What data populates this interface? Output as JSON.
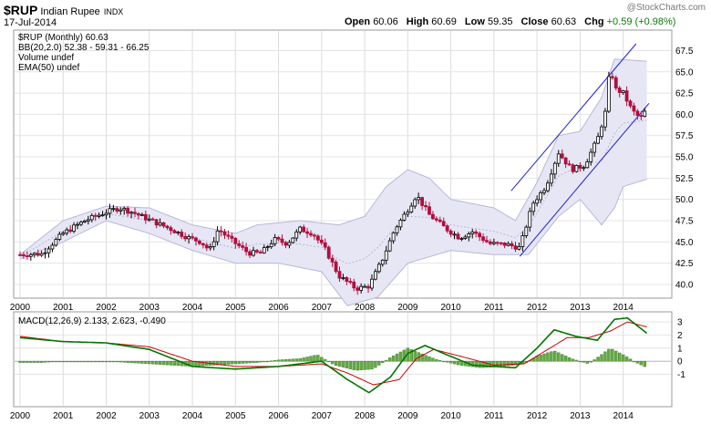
{
  "header": {
    "symbol": "$RUP",
    "name": "Indian Rupee",
    "exchange": "INDX",
    "date": "17-Jul-2014",
    "watermark": "@StockCharts.com",
    "open_label": "Open",
    "open": "60.06",
    "high_label": "High",
    "high": "60.69",
    "low_label": "Low",
    "low": "59.35",
    "close_label": "Close",
    "close": "60.63",
    "chg_label": "Chg",
    "chg": "+0.59 (+0.98%)"
  },
  "legend": {
    "price": "$RUP (Monthly) 60.63",
    "bb": "BB(20,2.0) 52.38 - 59.31 - 66.25",
    "volume": "Volume undef",
    "ema": "EMA(50) undef",
    "macd": "MACD(12,26,9) 2.133, 2.623, -0.490"
  },
  "colors": {
    "up_candle": "#000000",
    "down_candle": "#b0103c",
    "bb_fill": "#e6e6f5",
    "trend_lines": "#2222cc",
    "macd_line": "#007700",
    "signal_line": "#cc0000",
    "histogram": "#66aa44"
  },
  "chart_data": [
    {
      "type": "candlestick",
      "x_axis": {
        "label": "",
        "ticks": [
          "2000",
          "2001",
          "2002",
          "2003",
          "2004",
          "2005",
          "2006",
          "2007",
          "2008",
          "2009",
          "2010",
          "2011",
          "2012",
          "2013",
          "2014"
        ],
        "range": [
          2000,
          2014.6
        ]
      },
      "y_axis": {
        "ticks": [
          40.0,
          42.5,
          45.0,
          47.5,
          50.0,
          52.5,
          55.0,
          57.5,
          60.0,
          62.5,
          65.0,
          67.5
        ],
        "range": [
          38.6,
          69.8
        ],
        "position": "right"
      },
      "series": [
        {
          "name": "$RUP",
          "points": [
            [
              2000.0,
              43.5
            ],
            [
              2000.5,
              43.6
            ],
            [
              2001.0,
              46.0
            ],
            [
              2001.5,
              47.5
            ],
            [
              2002.0,
              48.5
            ],
            [
              2002.3,
              49.0
            ],
            [
              2002.6,
              48.5
            ],
            [
              2003.0,
              47.6
            ],
            [
              2003.5,
              46.5
            ],
            [
              2003.9,
              45.5
            ],
            [
              2004.2,
              45.0
            ],
            [
              2004.4,
              44.0
            ],
            [
              2004.6,
              46.5
            ],
            [
              2004.9,
              45.2
            ],
            [
              2005.3,
              43.7
            ],
            [
              2005.6,
              43.7
            ],
            [
              2005.9,
              45.3
            ],
            [
              2006.2,
              44.8
            ],
            [
              2006.5,
              46.5
            ],
            [
              2006.8,
              46.0
            ],
            [
              2007.1,
              44.0
            ],
            [
              2007.4,
              41.0
            ],
            [
              2007.8,
              39.5
            ],
            [
              2008.1,
              39.8
            ],
            [
              2008.4,
              42.8
            ],
            [
              2008.7,
              46.5
            ],
            [
              2009.0,
              48.8
            ],
            [
              2009.2,
              50.5
            ],
            [
              2009.5,
              48.2
            ],
            [
              2009.9,
              46.5
            ],
            [
              2010.2,
              45.5
            ],
            [
              2010.5,
              46.2
            ],
            [
              2010.9,
              44.8
            ],
            [
              2011.3,
              44.7
            ],
            [
              2011.6,
              44.3
            ],
            [
              2011.9,
              49.5
            ],
            [
              2012.2,
              51.5
            ],
            [
              2012.5,
              55.5
            ],
            [
              2012.8,
              53.5
            ],
            [
              2013.1,
              54.0
            ],
            [
              2013.4,
              57.0
            ],
            [
              2013.6,
              60.5
            ],
            [
              2013.7,
              66.0
            ],
            [
              2013.8,
              63.0
            ],
            [
              2014.0,
              62.5
            ],
            [
              2014.2,
              60.5
            ],
            [
              2014.4,
              59.5
            ],
            [
              2014.55,
              60.63
            ]
          ]
        },
        {
          "name": "BB(20,2.0)",
          "upper": [
            [
              2000.0,
              43.5
            ],
            [
              2001.0,
              47.5
            ],
            [
              2002.0,
              49.2
            ],
            [
              2003.0,
              49.0
            ],
            [
              2004.0,
              47.0
            ],
            [
              2005.0,
              46.0
            ],
            [
              2005.5,
              47.0
            ],
            [
              2006.5,
              47.5
            ],
            [
              2007.4,
              47.0
            ],
            [
              2008.0,
              48.0
            ],
            [
              2008.5,
              51.5
            ],
            [
              2009.0,
              53.5
            ],
            [
              2009.5,
              52.5
            ],
            [
              2010.0,
              50.0
            ],
            [
              2011.0,
              49.0
            ],
            [
              2011.5,
              47.5
            ],
            [
              2012.0,
              52.0
            ],
            [
              2012.5,
              57.5
            ],
            [
              2013.0,
              58.0
            ],
            [
              2013.5,
              62.0
            ],
            [
              2013.8,
              66.5
            ],
            [
              2014.55,
              66.25
            ]
          ],
          "lower": [
            [
              2000.0,
              43.0
            ],
            [
              2001.0,
              45.0
            ],
            [
              2002.0,
              47.5
            ],
            [
              2003.0,
              46.0
            ],
            [
              2004.0,
              44.0
            ],
            [
              2005.0,
              42.5
            ],
            [
              2006.0,
              42.5
            ],
            [
              2007.0,
              41.5
            ],
            [
              2007.6,
              37.5
            ],
            [
              2008.3,
              38.5
            ],
            [
              2009.0,
              42.5
            ],
            [
              2010.0,
              44.0
            ],
            [
              2011.0,
              43.5
            ],
            [
              2011.8,
              43.5
            ],
            [
              2012.5,
              48.0
            ],
            [
              2013.0,
              50.0
            ],
            [
              2013.5,
              47.0
            ],
            [
              2013.8,
              49.0
            ],
            [
              2014.0,
              51.5
            ],
            [
              2014.55,
              52.38
            ]
          ]
        }
      ]
    },
    {
      "type": "line",
      "x_axis": {
        "ticks": [
          "2000",
          "2001",
          "2002",
          "2003",
          "2004",
          "2005",
          "2006",
          "2007",
          "2008",
          "2009",
          "2010",
          "2011",
          "2012",
          "2013",
          "2014"
        ],
        "range": [
          2000,
          2014.6
        ]
      },
      "y_axis": {
        "ticks": [
          -1,
          0,
          1,
          2,
          3
        ],
        "range": [
          -3.4,
          3.7
        ],
        "position": "right"
      },
      "series": [
        {
          "name": "MACD(12,26,9)",
          "points": [
            [
              2000.0,
              1.8
            ],
            [
              2001.0,
              1.5
            ],
            [
              2002.0,
              1.4
            ],
            [
              2003.0,
              0.9
            ],
            [
              2004.0,
              -0.4
            ],
            [
              2005.0,
              -0.6
            ],
            [
              2006.0,
              -0.4
            ],
            [
              2007.0,
              0.0
            ],
            [
              2007.6,
              -1.4
            ],
            [
              2008.1,
              -2.4
            ],
            [
              2008.6,
              -1.2
            ],
            [
              2009.0,
              0.6
            ],
            [
              2009.4,
              1.2
            ],
            [
              2009.9,
              0.5
            ],
            [
              2010.5,
              -0.3
            ],
            [
              2011.5,
              -0.5
            ],
            [
              2012.0,
              1.0
            ],
            [
              2012.4,
              2.4
            ],
            [
              2012.9,
              1.9
            ],
            [
              2013.4,
              1.6
            ],
            [
              2013.8,
              3.2
            ],
            [
              2014.1,
              3.3
            ],
            [
              2014.55,
              2.133
            ]
          ]
        },
        {
          "name": "signal",
          "points": [
            [
              2000.0,
              1.9
            ],
            [
              2001.0,
              1.5
            ],
            [
              2002.0,
              1.4
            ],
            [
              2003.0,
              1.1
            ],
            [
              2004.0,
              0.0
            ],
            [
              2005.0,
              -0.4
            ],
            [
              2006.0,
              -0.4
            ],
            [
              2007.0,
              -0.2
            ],
            [
              2007.6,
              -0.9
            ],
            [
              2008.2,
              -1.8
            ],
            [
              2008.8,
              -1.4
            ],
            [
              2009.2,
              0.2
            ],
            [
              2009.6,
              0.9
            ],
            [
              2010.2,
              0.4
            ],
            [
              2011.0,
              -0.3
            ],
            [
              2011.7,
              -0.2
            ],
            [
              2012.2,
              0.8
            ],
            [
              2012.7,
              1.8
            ],
            [
              2013.2,
              1.8
            ],
            [
              2013.7,
              2.3
            ],
            [
              2014.1,
              3.0
            ],
            [
              2014.55,
              2.623
            ]
          ]
        },
        {
          "name": "histogram",
          "points": [
            [
              2000.0,
              -0.1
            ],
            [
              2000.5,
              -0.1
            ],
            [
              2001.0,
              0.0
            ],
            [
              2001.5,
              0.0
            ],
            [
              2002.0,
              0.0
            ],
            [
              2002.5,
              -0.1
            ],
            [
              2003.0,
              -0.2
            ],
            [
              2003.5,
              -0.3
            ],
            [
              2004.0,
              -0.4
            ],
            [
              2004.5,
              -0.3
            ],
            [
              2005.0,
              -0.2
            ],
            [
              2005.5,
              -0.1
            ],
            [
              2006.0,
              0.1
            ],
            [
              2006.5,
              0.2
            ],
            [
              2006.9,
              0.5
            ],
            [
              2007.3,
              -0.3
            ],
            [
              2007.8,
              -0.7
            ],
            [
              2008.2,
              -0.6
            ],
            [
              2008.6,
              0.3
            ],
            [
              2009.0,
              1.0
            ],
            [
              2009.3,
              0.6
            ],
            [
              2009.7,
              0.1
            ],
            [
              2010.2,
              -0.3
            ],
            [
              2010.7,
              -0.5
            ],
            [
              2011.2,
              -0.4
            ],
            [
              2011.7,
              -0.2
            ],
            [
              2012.0,
              0.4
            ],
            [
              2012.4,
              0.8
            ],
            [
              2012.8,
              0.2
            ],
            [
              2013.2,
              -0.2
            ],
            [
              2013.7,
              1.0
            ],
            [
              2014.0,
              0.5
            ],
            [
              2014.3,
              -0.1
            ],
            [
              2014.55,
              -0.49
            ]
          ]
        }
      ]
    }
  ]
}
